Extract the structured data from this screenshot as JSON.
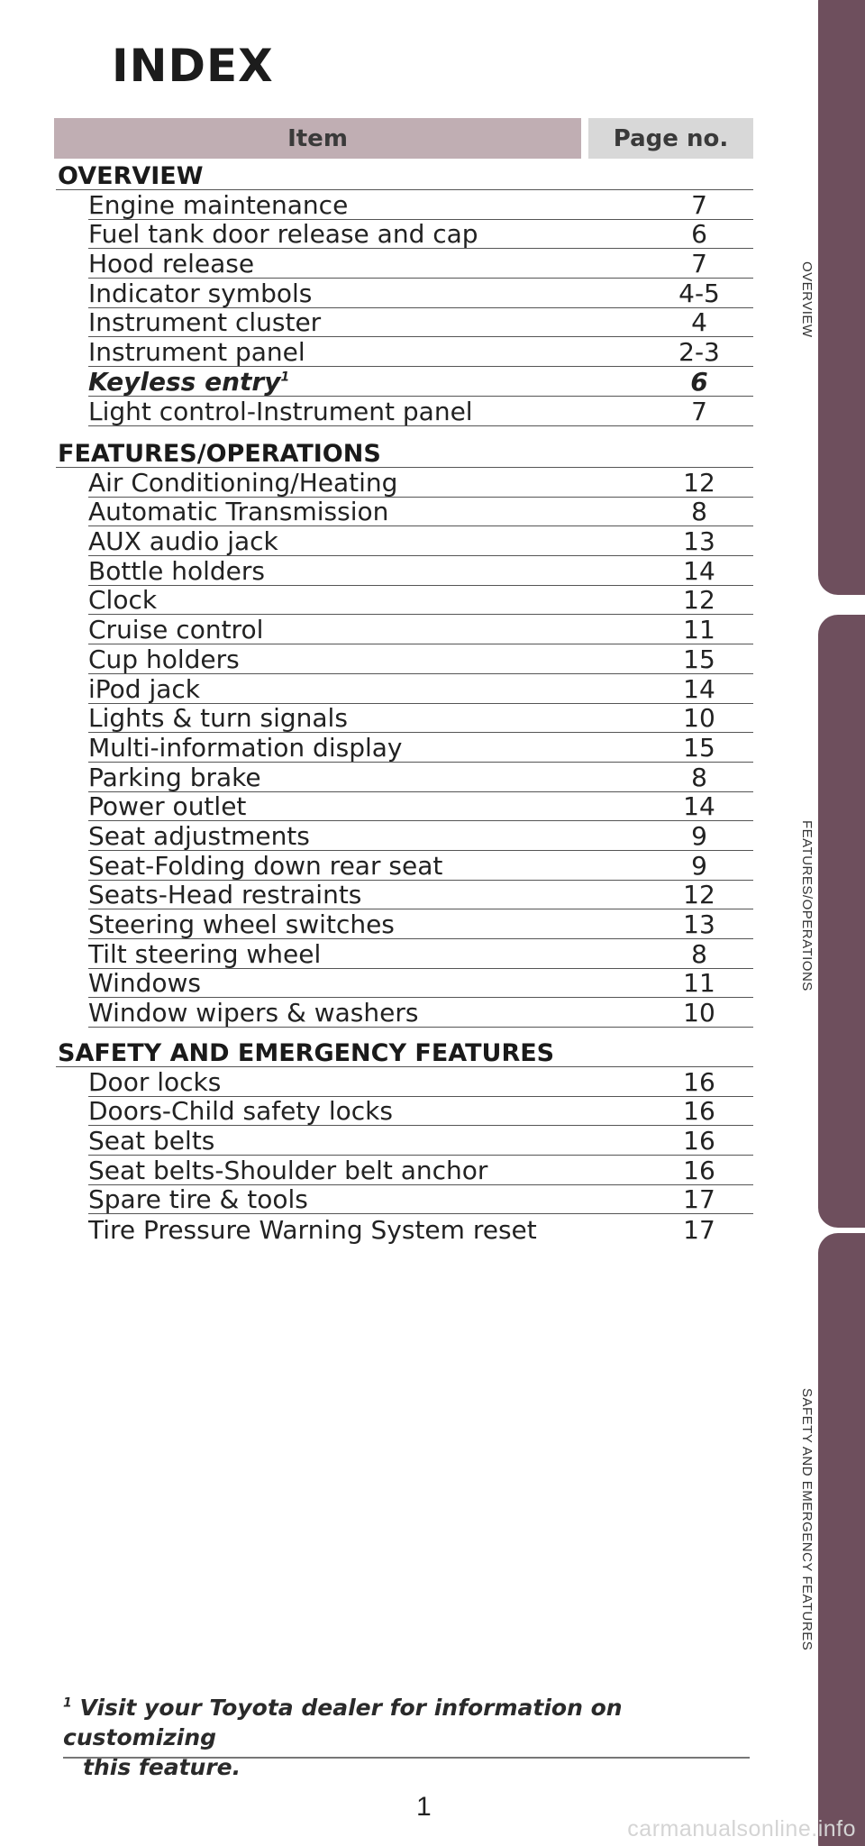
{
  "title": "INDEX",
  "table_header": {
    "item": "Item",
    "page": "Page no."
  },
  "sections": [
    {
      "heading": "OVERVIEW",
      "entries": [
        {
          "label": "Engine maintenance",
          "page": "7"
        },
        {
          "label": "Fuel tank door release and cap",
          "page": "6"
        },
        {
          "label": "Hood release",
          "page": "7"
        },
        {
          "label": "Indicator symbols",
          "page": "4-5"
        },
        {
          "label": "Instrument cluster",
          "page": "4"
        },
        {
          "label": "Instrument panel",
          "page": "2-3"
        },
        {
          "label": "Keyless entry",
          "page": "6",
          "footnote_mark": "1",
          "style": "bold-italic"
        },
        {
          "label": "Light control-Instrument panel",
          "page": "7"
        }
      ]
    },
    {
      "heading": "FEATURES/OPERATIONS",
      "entries": [
        {
          "label": "Air Conditioning/Heating",
          "page": "12"
        },
        {
          "label": "Automatic Transmission",
          "page": "8"
        },
        {
          "label": "AUX audio jack",
          "page": "13"
        },
        {
          "label": "Bottle holders",
          "page": "14"
        },
        {
          "label": "Clock",
          "page": "12"
        },
        {
          "label": "Cruise control",
          "page": "11"
        },
        {
          "label": "Cup holders",
          "page": "15"
        },
        {
          "label": "iPod jack",
          "page": "14"
        },
        {
          "label": "Lights & turn signals",
          "page": "10"
        },
        {
          "label": "Multi-information display",
          "page": "15"
        },
        {
          "label": "Parking brake",
          "page": "8"
        },
        {
          "label": "Power outlet",
          "page": "14"
        },
        {
          "label": "Seat adjustments",
          "page": "9"
        },
        {
          "label": "Seat-Folding down rear seat",
          "page": "9"
        },
        {
          "label": "Seats-Head restraints",
          "page": "12"
        },
        {
          "label": "Steering wheel switches",
          "page": "13"
        },
        {
          "label": "Tilt steering wheel",
          "page": "8"
        },
        {
          "label": "Windows",
          "page": "11"
        },
        {
          "label": "Window wipers & washers",
          "page": "10"
        }
      ]
    },
    {
      "heading": "SAFETY AND EMERGENCY FEATURES",
      "entries": [
        {
          "label": "Door locks",
          "page": "16"
        },
        {
          "label": "Doors-Child safety locks",
          "page": "16"
        },
        {
          "label": "Seat belts",
          "page": "16"
        },
        {
          "label": "Seat belts-Shoulder belt anchor",
          "page": "16"
        },
        {
          "label": "Spare tire & tools",
          "page": "17"
        },
        {
          "label": "Tire Pressure Warning System reset",
          "page": "17"
        }
      ]
    }
  ],
  "footnote": {
    "mark": "1",
    "line1": "Visit your Toyota dealer for information on customizing",
    "line2": "this feature."
  },
  "page_number": "1",
  "side_tabs": [
    "OVERVIEW",
    "FEATURES/OPERATIONS",
    "SAFETY AND EMERGENCY FEATURES"
  ],
  "watermark": "carmanualsonline.info",
  "colors": {
    "tab": "#6e4f5d",
    "header_item": "#c0aeb3",
    "header_page": "#d8d8d8"
  }
}
